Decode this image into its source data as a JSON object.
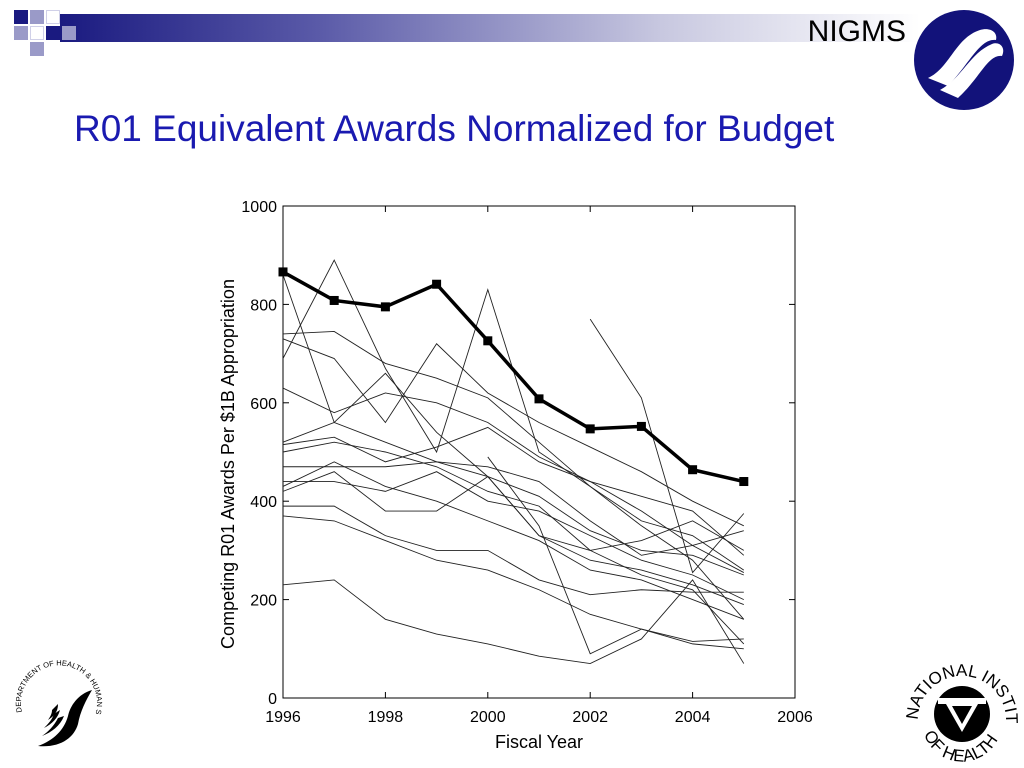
{
  "header": {
    "org": "NIGMS",
    "title": "R01 Equivalent Awards Normalized for Budget"
  },
  "colors": {
    "title": "#1a1ab0",
    "banner_dark": "#1a1a80",
    "banner_square_light": "#9a9ac8",
    "logo_navy": "#12127a"
  },
  "logos": {
    "top_right": "nigms-logo",
    "bottom_left": "hhs-eagle-logo",
    "bottom_left_text": "DEPARTMENT OF HEALTH & HUMAN SERVICES·USA",
    "bottom_right": "nih-logo",
    "bottom_right_text": [
      "NATIONAL INSTITUTES",
      "OF HEALTH"
    ]
  },
  "chart_data": {
    "type": "line",
    "title": "",
    "xlabel": "Fiscal Year",
    "ylabel": "Competing R01 Awards Per $1B Appropriation",
    "xlim": [
      1996,
      2006
    ],
    "ylim": [
      0,
      1000
    ],
    "xticks": [
      1996,
      1998,
      2000,
      2002,
      2004,
      2006
    ],
    "yticks": [
      0,
      200,
      400,
      600,
      800,
      1000
    ],
    "grid": false,
    "legend": "none",
    "highlight_series": {
      "x": [
        1996,
        1997,
        1998,
        1999,
        2000,
        2001,
        2002,
        2003,
        2004,
        2005
      ],
      "values": [
        866,
        808,
        795,
        841,
        726,
        608,
        547,
        552,
        464,
        440
      ]
    },
    "series": [
      {
        "x": [
          1996,
          1997,
          1998,
          1999,
          2000,
          2001,
          2002,
          2003,
          2004,
          2005
        ],
        "values": [
          740,
          745,
          680,
          650,
          610,
          520,
          430,
          350,
          280,
          160
        ]
      },
      {
        "x": [
          1996,
          1997,
          1998,
          1999,
          2000,
          2001,
          2002,
          2003,
          2004,
          2005
        ],
        "values": [
          690,
          890,
          670,
          500,
          830,
          500,
          430,
          360,
          330,
          260
        ]
      },
      {
        "x": [
          1996,
          1997,
          1998,
          1999,
          2000,
          2001,
          2002,
          2003,
          2004,
          2005
        ],
        "values": [
          860,
          560,
          660,
          540,
          450,
          330,
          300,
          250,
          220,
          110
        ]
      },
      {
        "x": [
          1996,
          1997,
          1998,
          1999,
          2000,
          2001,
          2002,
          2003,
          2004,
          2005
        ],
        "values": [
          630,
          580,
          620,
          600,
          560,
          490,
          440,
          410,
          380,
          290
        ]
      },
      {
        "x": [
          1996,
          1997,
          1998,
          1999,
          2000,
          2001,
          2002,
          2003,
          2004,
          2005
        ],
        "values": [
          730,
          690,
          560,
          720,
          620,
          560,
          510,
          460,
          400,
          350
        ]
      },
      {
        "x": [
          1996,
          1997,
          1998,
          1999,
          2000,
          2001,
          2002,
          2003,
          2004,
          2005
        ],
        "values": [
          520,
          560,
          520,
          480,
          450,
          410,
          340,
          300,
          290,
          250
        ]
      },
      {
        "x": [
          1996,
          1997,
          1998,
          1999,
          2000,
          2001,
          2002,
          2003,
          2004,
          2005
        ],
        "values": [
          515,
          530,
          480,
          510,
          550,
          480,
          440,
          380,
          310,
          255
        ]
      },
      {
        "x": [
          1996,
          1997,
          1998,
          1999,
          2000,
          2001,
          2002,
          2003,
          2004,
          2005
        ],
        "values": [
          500,
          520,
          500,
          470,
          420,
          390,
          300,
          320,
          360,
          300
        ]
      },
      {
        "x": [
          1996,
          1997,
          1998,
          1999,
          2000,
          2001,
          2002,
          2003,
          2004,
          2005
        ],
        "values": [
          470,
          470,
          470,
          480,
          470,
          440,
          360,
          290,
          310,
          340
        ]
      },
      {
        "x": [
          1996,
          1997,
          1998,
          1999,
          2000,
          2001,
          2002,
          2003,
          2004,
          2005
        ],
        "values": [
          440,
          440,
          420,
          460,
          400,
          380,
          330,
          280,
          250,
          200
        ]
      },
      {
        "x": [
          1996,
          1997,
          1998,
          1999,
          2000,
          2001,
          2002,
          2003,
          2004,
          2005
        ],
        "values": [
          430,
          480,
          430,
          400,
          360,
          320,
          260,
          240,
          200,
          160
        ]
      },
      {
        "x": [
          1996,
          1997,
          1998,
          1999,
          2000,
          2001,
          2002,
          2003,
          2004,
          2005
        ],
        "values": [
          420,
          460,
          380,
          380,
          450,
          330,
          280,
          260,
          230,
          190
        ]
      },
      {
        "x": [
          1996,
          1997,
          1998,
          1999,
          2000,
          2001,
          2002,
          2003,
          2004,
          2005
        ],
        "values": [
          390,
          390,
          330,
          300,
          300,
          240,
          210,
          220,
          215,
          215
        ]
      },
      {
        "x": [
          1996,
          1997,
          1998,
          1999,
          2000,
          2001,
          2002,
          2003,
          2004,
          2005
        ],
        "values": [
          370,
          360,
          320,
          280,
          260,
          220,
          170,
          140,
          115,
          120
        ]
      },
      {
        "x": [
          1996,
          1997,
          1998,
          1999,
          2000,
          2001,
          2002,
          2003,
          2004,
          2005
        ],
        "values": [
          230,
          240,
          160,
          130,
          110,
          85,
          70,
          120,
          240,
          70
        ]
      },
      {
        "x": [
          2000,
          2001,
          2002,
          2003,
          2004,
          2005
        ],
        "values": [
          490,
          350,
          90,
          140,
          110,
          100
        ]
      },
      {
        "x": [
          2002,
          2003,
          2004,
          2005
        ],
        "values": [
          770,
          610,
          255,
          375
        ]
      }
    ]
  }
}
